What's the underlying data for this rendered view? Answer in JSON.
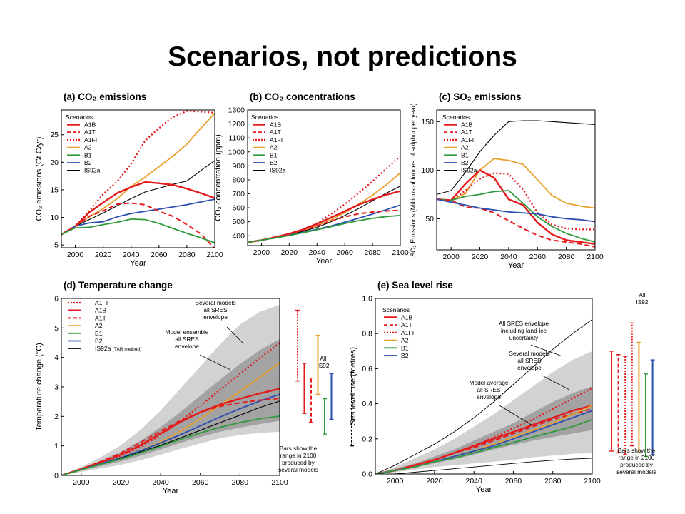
{
  "title": "Scenarios, not predictions",
  "colors": {
    "A1B": "#e41a1c",
    "A1T": "#e41a1c",
    "A1FI": "#e41a1c",
    "A2": "#e8a02a",
    "B1": "#2e9a3a",
    "B2": "#2a4fb0",
    "IS92a": "#000000",
    "envelope_outer": "#d2d2d2",
    "envelope_inner": "#a3a3a3"
  },
  "dash": {
    "A1B": "none",
    "A1T": "7,4",
    "A1FI": "2,3",
    "A2": "none",
    "B1": "none",
    "B2": "none",
    "IS92a": "none"
  },
  "width": {
    "A1B": 2.4,
    "A1T": 2,
    "A1FI": 2.3,
    "A2": 1.8,
    "B1": 1.8,
    "B2": 1.8,
    "IS92a": 1.1
  },
  "chart_data": [
    {
      "id": "a",
      "type": "line",
      "title": "(a) CO₂ emissions",
      "xlabel": "Year",
      "ylabel": "CO₂ emissions (Gt C/yr)",
      "xlim": [
        1990,
        2100
      ],
      "ylim": [
        4.5,
        29.5
      ],
      "xticks": [
        2000,
        2020,
        2040,
        2060,
        2080,
        2100
      ],
      "yticks": [
        5,
        10,
        15,
        20,
        25
      ],
      "legend_title": "Scenarios",
      "legend": [
        "A1B",
        "A1T",
        "A1FI",
        "A2",
        "B1",
        "B2",
        "IS92a"
      ],
      "x": [
        1990,
        2000,
        2010,
        2020,
        2030,
        2040,
        2050,
        2060,
        2070,
        2080,
        2090,
        2100
      ],
      "series": [
        {
          "name": "A1FI",
          "values": [
            6.9,
            8.4,
            11.2,
            14.2,
            16.5,
            19.7,
            23.9,
            26.2,
            28.2,
            29.3,
            29.2,
            29.0
          ]
        },
        {
          "name": "A2",
          "values": [
            6.9,
            8.4,
            10.1,
            11.6,
            13.4,
            15.6,
            17.3,
            19.2,
            21.1,
            23.3,
            26.2,
            28.9
          ]
        },
        {
          "name": "IS92a",
          "values": [
            6.9,
            8.4,
            9.6,
            10.8,
            12.1,
            13.4,
            14.6,
            15.3,
            16.0,
            16.6,
            18.5,
            20.3
          ]
        },
        {
          "name": "A1B",
          "values": [
            6.9,
            8.4,
            10.9,
            12.7,
            14.4,
            15.5,
            16.4,
            16.2,
            15.9,
            15.2,
            14.4,
            13.5
          ]
        },
        {
          "name": "B2",
          "values": [
            6.9,
            8.4,
            9.0,
            9.2,
            10.1,
            10.7,
            11.1,
            11.5,
            11.9,
            12.3,
            12.8,
            13.3
          ]
        },
        {
          "name": "A1T",
          "values": [
            6.9,
            8.4,
            10.2,
            11.2,
            12.4,
            12.6,
            12.3,
            11.1,
            10.2,
            8.7,
            7.0,
            4.3
          ]
        },
        {
          "name": "B1",
          "values": [
            6.9,
            8.1,
            8.2,
            8.7,
            9.1,
            9.7,
            9.6,
            8.9,
            8.0,
            7.1,
            6.3,
            5.4
          ]
        }
      ]
    },
    {
      "id": "b",
      "type": "line",
      "title": "(b) CO₂ concentrations",
      "xlabel": "Year",
      "ylabel": "CO₂ concentration (ppm)",
      "xlim": [
        1990,
        2100
      ],
      "ylim": [
        330,
        1300
      ],
      "xticks": [
        2000,
        2020,
        2040,
        2060,
        2080,
        2100
      ],
      "yticks": [
        400,
        500,
        600,
        700,
        800,
        900,
        1000,
        1100,
        1200,
        1300
      ],
      "legend_title": "Scenarios",
      "legend": [
        "A1B",
        "A1T",
        "A1FI",
        "A2",
        "B1",
        "B2",
        "IS92a"
      ],
      "x": [
        1990,
        2000,
        2010,
        2020,
        2030,
        2040,
        2050,
        2060,
        2070,
        2080,
        2090,
        2100
      ],
      "series": [
        {
          "name": "A1FI",
          "values": [
            353,
            369,
            390,
            415,
            447,
            490,
            555,
            625,
            705,
            790,
            880,
            970
          ]
        },
        {
          "name": "A2",
          "values": [
            353,
            369,
            388,
            412,
            438,
            470,
            515,
            565,
            625,
            690,
            765,
            850
          ]
        },
        {
          "name": "IS92a",
          "values": [
            353,
            369,
            386,
            408,
            432,
            460,
            500,
            545,
            595,
            650,
            705,
            755
          ]
        },
        {
          "name": "A1B",
          "values": [
            353,
            369,
            390,
            414,
            445,
            485,
            530,
            575,
            622,
            660,
            693,
            720
          ]
        },
        {
          "name": "B2",
          "values": [
            353,
            369,
            385,
            405,
            425,
            447,
            470,
            497,
            525,
            555,
            587,
            620
          ]
        },
        {
          "name": "A1T",
          "values": [
            353,
            369,
            389,
            412,
            440,
            472,
            505,
            535,
            557,
            570,
            577,
            582
          ]
        },
        {
          "name": "B1",
          "values": [
            353,
            369,
            384,
            402,
            422,
            443,
            465,
            488,
            508,
            525,
            538,
            545
          ]
        }
      ]
    },
    {
      "id": "c",
      "type": "line",
      "title": "(c) SO₂ emissions",
      "xlabel": "Year",
      "ylabel": "SO₂ Emissions (Millions of tonnes of sulphur per year)",
      "xlim": [
        1990,
        2100
      ],
      "ylim": [
        18,
        162
      ],
      "xticks": [
        2000,
        2020,
        2040,
        2060,
        2080,
        2100
      ],
      "yticks": [
        50,
        100,
        150
      ],
      "legend_title": "Scenarios",
      "legend": [
        "A1B",
        "A1T",
        "A1FI",
        "A2",
        "B1",
        "B2",
        "IS92a"
      ],
      "x": [
        1990,
        2000,
        2010,
        2020,
        2030,
        2040,
        2050,
        2060,
        2070,
        2080,
        2090,
        2100
      ],
      "series": [
        {
          "name": "IS92a",
          "values": [
            75,
            79,
            98,
            119,
            136,
            150,
            151,
            151,
            150,
            149,
            148,
            147
          ]
        },
        {
          "name": "A2",
          "values": [
            70,
            69,
            76,
            100,
            112,
            110,
            106,
            90,
            74,
            66,
            63,
            61
          ]
        },
        {
          "name": "A1FI",
          "values": [
            70,
            69,
            79,
            91,
            97,
            96,
            80,
            56,
            44,
            40,
            39,
            39
          ]
        },
        {
          "name": "A1B",
          "values": [
            70,
            69,
            86,
            100,
            92,
            70,
            64,
            46,
            34,
            28,
            26,
            24
          ]
        },
        {
          "name": "B1",
          "values": [
            70,
            69,
            73,
            75,
            78,
            79,
            66,
            52,
            42,
            35,
            30,
            26
          ]
        },
        {
          "name": "A1T",
          "values": [
            70,
            69,
            62,
            61,
            56,
            48,
            40,
            33,
            28,
            26,
            24,
            21
          ]
        },
        {
          "name": "B2",
          "values": [
            70,
            67,
            64,
            61,
            59,
            57,
            56,
            55,
            52,
            50,
            49,
            47
          ]
        }
      ]
    },
    {
      "id": "d",
      "type": "line",
      "title": "(d) Temperature change",
      "xlabel": "Year",
      "ylabel": "Temperature change (°C)",
      "xlim": [
        1990,
        2100
      ],
      "ylim": [
        0,
        6
      ],
      "xticks": [
        2000,
        2020,
        2040,
        2060,
        2080,
        2100
      ],
      "yticks": [
        0,
        1,
        2,
        3,
        4,
        5,
        6
      ],
      "legend": [
        "A1FI",
        "A1B",
        "A1T",
        "A2",
        "B1",
        "B2",
        "IS92a (TAR method)"
      ],
      "x": [
        1990,
        2000,
        2010,
        2020,
        2030,
        2040,
        2050,
        2060,
        2070,
        2080,
        2090,
        2100
      ],
      "series": [
        {
          "name": "A1FI",
          "values": [
            0,
            0.2,
            0.42,
            0.66,
            0.97,
            1.37,
            1.85,
            2.36,
            2.9,
            3.45,
            3.98,
            4.49
          ]
        },
        {
          "name": "A2",
          "values": [
            0,
            0.19,
            0.39,
            0.6,
            0.84,
            1.14,
            1.5,
            1.92,
            2.38,
            2.85,
            3.33,
            3.82
          ]
        },
        {
          "name": "A1B",
          "values": [
            0,
            0.21,
            0.44,
            0.7,
            1.03,
            1.42,
            1.81,
            2.14,
            2.4,
            2.6,
            2.78,
            2.94
          ]
        },
        {
          "name": "B2",
          "values": [
            0,
            0.2,
            0.4,
            0.6,
            0.84,
            1.1,
            1.38,
            1.68,
            1.98,
            2.26,
            2.52,
            2.75
          ]
        },
        {
          "name": "A1T",
          "values": [
            0,
            0.22,
            0.47,
            0.76,
            1.12,
            1.5,
            1.86,
            2.14,
            2.34,
            2.46,
            2.55,
            2.61
          ]
        },
        {
          "name": "IS92a (TAR method)",
          "values": [
            0,
            0.19,
            0.38,
            0.58,
            0.8,
            1.02,
            1.27,
            1.53,
            1.79,
            2.04,
            2.3,
            2.52
          ]
        },
        {
          "name": "B1",
          "values": [
            0,
            0.19,
            0.38,
            0.56,
            0.77,
            0.99,
            1.22,
            1.44,
            1.63,
            1.79,
            1.92,
            2.01
          ]
        }
      ],
      "envelopes": [
        {
          "name": "Several models all SRES envelope",
          "lower": [
            0,
            0.12,
            0.24,
            0.36,
            0.52,
            0.7,
            0.9,
            1.08,
            1.26,
            1.37,
            1.44,
            1.48
          ],
          "upper": [
            0,
            0.28,
            0.62,
            1.02,
            1.55,
            2.2,
            2.95,
            3.7,
            4.45,
            5.12,
            5.55,
            5.78
          ]
        },
        {
          "name": "Model ensemble all SRES envelope",
          "lower": [
            0,
            0.16,
            0.32,
            0.48,
            0.67,
            0.88,
            1.1,
            1.3,
            1.48,
            1.62,
            1.74,
            1.85
          ],
          "upper": [
            0,
            0.24,
            0.5,
            0.8,
            1.18,
            1.64,
            2.15,
            2.7,
            3.25,
            3.78,
            4.25,
            4.62
          ]
        }
      ],
      "range_bars_2100": [
        {
          "name": "A1FI",
          "low": 3.2,
          "high": 5.6
        },
        {
          "name": "A1B",
          "low": 2.1,
          "high": 3.8
        },
        {
          "name": "A1T",
          "low": 1.8,
          "high": 3.3
        },
        {
          "name": "A2",
          "low": 2.75,
          "high": 4.75
        },
        {
          "name": "B1",
          "low": 1.4,
          "high": 2.6
        },
        {
          "name": "B2",
          "low": 1.9,
          "high": 3.45
        },
        {
          "name": "All IS92",
          "low": 1.0,
          "high": 3.5
        }
      ],
      "annotations": {
        "several_models": [
          "Several models",
          "all SRES",
          "envelope"
        ],
        "ensemble": [
          "Model ensemble",
          "all SRES",
          "envelope"
        ],
        "all_is92": [
          "All",
          "IS92"
        ],
        "bars_note": [
          "Bars show the",
          "range in 2100",
          "produced by",
          "several models"
        ]
      }
    },
    {
      "id": "e",
      "type": "line",
      "title": "(e) Sea level rise",
      "xlabel": "Year",
      "ylabel": "Sea level rise (metres)",
      "xlim": [
        1990,
        2100
      ],
      "ylim": [
        0,
        1.0
      ],
      "xticks": [
        2000,
        2020,
        2040,
        2060,
        2080,
        2100
      ],
      "yticks": [
        0.0,
        0.2,
        0.4,
        0.6,
        0.8,
        1.0
      ],
      "ytick_labels": [
        "0.0",
        "0.2",
        "0.4",
        "0.6",
        "0.8",
        "1.0"
      ],
      "legend_title": "Scenarios",
      "legend": [
        "A1B",
        "A1T",
        "A1FI",
        "A2",
        "B1",
        "B2"
      ],
      "x": [
        1990,
        2000,
        2010,
        2020,
        2030,
        2040,
        2050,
        2060,
        2070,
        2080,
        2090,
        2100
      ],
      "series": [
        {
          "name": "A1FI",
          "values": [
            0,
            0.02,
            0.05,
            0.08,
            0.12,
            0.16,
            0.21,
            0.26,
            0.31,
            0.37,
            0.43,
            0.49
          ]
        },
        {
          "name": "A1B",
          "values": [
            0,
            0.02,
            0.05,
            0.08,
            0.12,
            0.16,
            0.2,
            0.24,
            0.28,
            0.32,
            0.36,
            0.39
          ]
        },
        {
          "name": "A1T",
          "values": [
            0,
            0.02,
            0.05,
            0.08,
            0.12,
            0.15,
            0.19,
            0.23,
            0.27,
            0.31,
            0.34,
            0.37
          ]
        },
        {
          "name": "A2",
          "values": [
            0,
            0.02,
            0.04,
            0.07,
            0.1,
            0.13,
            0.17,
            0.21,
            0.25,
            0.29,
            0.34,
            0.39
          ]
        },
        {
          "name": "B2",
          "values": [
            0,
            0.02,
            0.04,
            0.07,
            0.1,
            0.13,
            0.16,
            0.2,
            0.24,
            0.28,
            0.32,
            0.36
          ]
        },
        {
          "name": "B1",
          "values": [
            0,
            0.02,
            0.04,
            0.07,
            0.09,
            0.12,
            0.15,
            0.18,
            0.21,
            0.24,
            0.27,
            0.31
          ]
        }
      ],
      "envelopes": [
        {
          "name": "Several models all SRES envelope",
          "lower": [
            0,
            0.01,
            0.025,
            0.04,
            0.05,
            0.06,
            0.07,
            0.08,
            0.095,
            0.105,
            0.115,
            0.12
          ],
          "upper": [
            0,
            0.04,
            0.09,
            0.14,
            0.2,
            0.27,
            0.34,
            0.42,
            0.5,
            0.58,
            0.65,
            0.7
          ]
        },
        {
          "name": "Model average all SRES envelope",
          "lower": [
            0,
            0.02,
            0.04,
            0.06,
            0.085,
            0.11,
            0.14,
            0.165,
            0.19,
            0.21,
            0.23,
            0.25
          ],
          "upper": [
            0,
            0.03,
            0.06,
            0.1,
            0.14,
            0.19,
            0.24,
            0.29,
            0.35,
            0.41,
            0.46,
            0.5
          ]
        }
      ],
      "land_ice_envelope": {
        "name": "All SRES envelope including land-ice uncertainty",
        "lower": [
          0,
          0.0,
          0.01,
          0.02,
          0.03,
          0.04,
          0.05,
          0.06,
          0.07,
          0.078,
          0.085,
          0.09
        ],
        "upper": [
          0,
          0.05,
          0.11,
          0.17,
          0.24,
          0.32,
          0.41,
          0.51,
          0.61,
          0.71,
          0.8,
          0.88
        ]
      },
      "range_bars_2100": [
        {
          "name": "A1B",
          "low": 0.13,
          "high": 0.7
        },
        {
          "name": "A1T",
          "low": 0.12,
          "high": 0.68
        },
        {
          "name": "A1FI",
          "low": 0.11,
          "high": 0.67
        },
        {
          "name": "A1FI",
          "low": 0.16,
          "high": 0.86
        },
        {
          "name": "A2",
          "low": 0.12,
          "high": 0.75
        },
        {
          "name": "B1",
          "low": 0.1,
          "high": 0.57
        },
        {
          "name": "B2",
          "low": 0.11,
          "high": 0.65
        },
        {
          "name": "All IS92",
          "low": 0.14,
          "high": 0.95
        }
      ],
      "annotations": {
        "land_ice": [
          "All SRES envelope",
          "including land-ice",
          "uncertainty"
        ],
        "several_models": [
          "Several models",
          "all SRES",
          "envelope"
        ],
        "model_average": [
          "Model average",
          "all SRES",
          "envelope"
        ],
        "all_is92": [
          "All",
          "IS92"
        ],
        "bars_note": [
          "Bars show the",
          "range in 2100",
          "produced by",
          "several models"
        ]
      }
    }
  ]
}
